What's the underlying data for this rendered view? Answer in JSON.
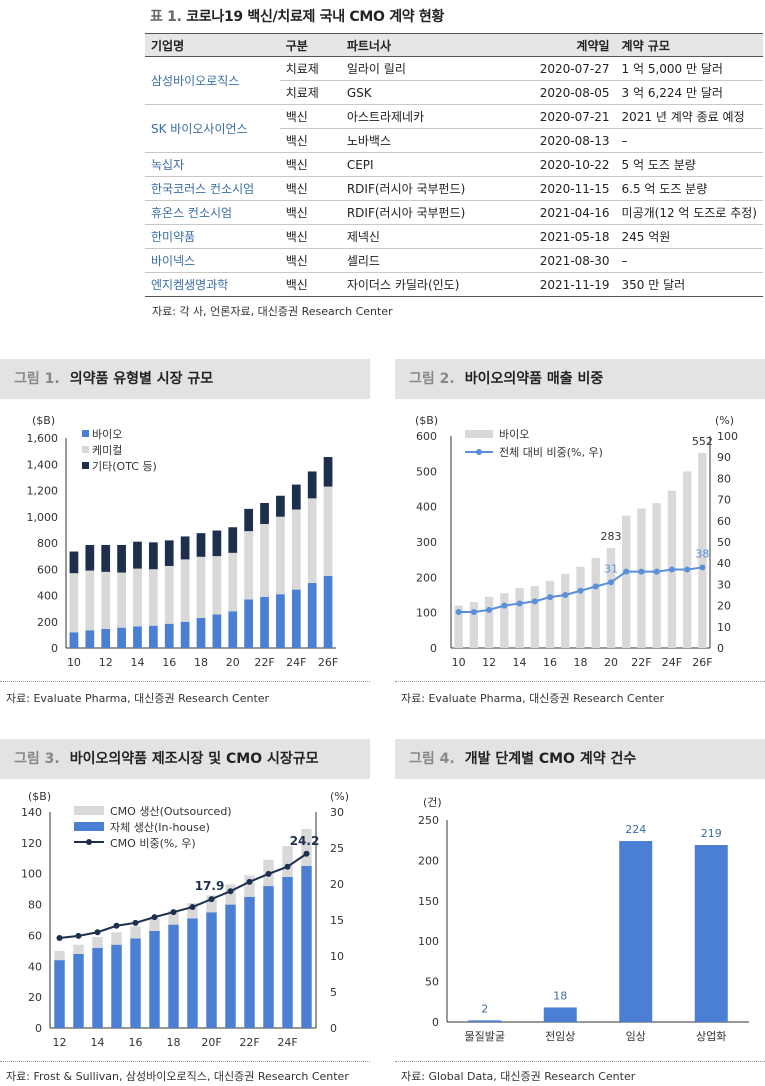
{
  "table": {
    "fig": "표 1.",
    "title": "코로나19 백신/치료제 국내 CMO 계약 현황",
    "headers": [
      "기업명",
      "구분",
      "파트너사",
      "계약일",
      "계약 규모"
    ],
    "rows": [
      {
        "company": "삼성바이오로직스",
        "type": "치료제",
        "partner": "일라이 릴리",
        "date": "2020-07-27",
        "size": "1 억 5,000 만 달러"
      },
      {
        "company": "",
        "type": "치료제",
        "partner": "GSK",
        "date": "2020-08-05",
        "size": "3 억 6,224 만 달러"
      },
      {
        "company": "SK 바이오사이언스",
        "type": "백신",
        "partner": "아스트라제네카",
        "date": "2020-07-21",
        "size": "2021 년 계약 종료 예정"
      },
      {
        "company": "",
        "type": "백신",
        "partner": "노바백스",
        "date": "2020-08-13",
        "size": "–"
      },
      {
        "company": "녹십자",
        "type": "백신",
        "partner": "CEPI",
        "date": "2020-10-22",
        "size": "5 억 도즈 분량"
      },
      {
        "company": "한국코러스 컨소시엄",
        "type": "백신",
        "partner": "RDIF(러시아 국부펀드)",
        "date": "2020-11-15",
        "size": "6.5 억 도즈 분량"
      },
      {
        "company": "휴온스 컨소시엄",
        "type": "백신",
        "partner": "RDIF(러시아 국부펀드)",
        "date": "2021-04-16",
        "size": "미공개(12 억 도즈로 추정)"
      },
      {
        "company": "한미약품",
        "type": "백신",
        "partner": "제넥신",
        "date": "2021-05-18",
        "size": "245 억원"
      },
      {
        "company": "바이넥스",
        "type": "백신",
        "partner": "셀리드",
        "date": "2021-08-30",
        "size": "–"
      },
      {
        "company": "엔지켐생명과학",
        "type": "백신",
        "partner": "자이더스 카딜라(인도)",
        "date": "2021-11-19",
        "size": "350 만 달러"
      }
    ],
    "source": "자료: 각 사, 언론자료, 대신증권 Research Center"
  },
  "fig1": {
    "fig": "그림 1.",
    "title": "의약품 유형별 시장 규모",
    "source": "자료: Evaluate Pharma, 대신증권 Research Center"
  },
  "fig2": {
    "fig": "그림 2.",
    "title": "바이오의약품 매출 비중",
    "source": "자료: Evaluate Pharma, 대신증권 Research Center"
  },
  "fig3": {
    "fig": "그림 3.",
    "title": "바이오의약품 제조시장 및 CMO 시장규모",
    "source": "자료: Frost & Sullivan, 삼성바이오로직스, 대신증권 Research Center"
  },
  "fig4": {
    "fig": "그림 4.",
    "title": "개발 단계별 CMO 계약 건수",
    "source": "자료: Global Data, 대신증권 Research Center"
  },
  "chart_data": [
    {
      "id": "fig1",
      "type": "bar",
      "stacked": true,
      "unit": "($B)",
      "categories": [
        "10",
        "11",
        "12",
        "13",
        "14",
        "15",
        "16",
        "17",
        "18",
        "19",
        "20",
        "21",
        "22F",
        "23F",
        "24F",
        "25F",
        "26F"
      ],
      "tick_labels": [
        "10",
        "12",
        "14",
        "16",
        "18",
        "20",
        "22F",
        "24F",
        "26F"
      ],
      "ylim": [
        0,
        1600
      ],
      "yticks": [
        0,
        200,
        400,
        600,
        800,
        "1,000",
        "1,200",
        "1,400",
        "1,600"
      ],
      "series": [
        {
          "name": "바이오",
          "color": "#4a7fd4",
          "values": [
            120,
            135,
            145,
            155,
            165,
            170,
            185,
            200,
            230,
            255,
            280,
            370,
            390,
            410,
            445,
            495,
            550
          ]
        },
        {
          "name": "케미컬",
          "color": "#d9d9d9",
          "values": [
            450,
            455,
            435,
            420,
            440,
            430,
            440,
            475,
            465,
            445,
            445,
            520,
            555,
            590,
            610,
            645,
            680
          ]
        },
        {
          "name": "기타(OTC 등)",
          "color": "#1e2f4d",
          "values": [
            165,
            195,
            205,
            210,
            205,
            205,
            195,
            175,
            180,
            195,
            195,
            170,
            160,
            160,
            190,
            205,
            225
          ]
        }
      ]
    },
    {
      "id": "fig2",
      "type": "bar",
      "unit_left": "($B)",
      "unit_right": "(%)",
      "categories": [
        "10",
        "11",
        "12",
        "13",
        "14",
        "15",
        "16",
        "17",
        "18",
        "19",
        "20",
        "21",
        "22F",
        "23F",
        "24F",
        "25F",
        "26F"
      ],
      "tick_labels": [
        "10",
        "12",
        "14",
        "16",
        "18",
        "20",
        "22F",
        "24F",
        "26F"
      ],
      "ylim_left": [
        0,
        600
      ],
      "ylim_right": [
        0,
        100
      ],
      "series": [
        {
          "name": "바이오",
          "type": "bar",
          "color": "#d9d9d9",
          "values": [
            120,
            130,
            145,
            155,
            170,
            175,
            190,
            210,
            230,
            255,
            283,
            375,
            395,
            410,
            445,
            500,
            552
          ]
        },
        {
          "name": "전체 대비 비중(%, 우)",
          "type": "line",
          "color": "#5b8fd8",
          "values": [
            17,
            17,
            18,
            20,
            21,
            22,
            24,
            25,
            27,
            29,
            31,
            36,
            36,
            36,
            37,
            37,
            38
          ]
        }
      ],
      "data_labels": [
        {
          "index": 10,
          "series": "바이오",
          "text": "283"
        },
        {
          "index": 16,
          "series": "바이오",
          "text": "552"
        },
        {
          "index": 10,
          "series": "전체 대비 비중(%, 우)",
          "text": "31"
        },
        {
          "index": 16,
          "series": "전체 대비 비중(%, 우)",
          "text": "38"
        }
      ]
    },
    {
      "id": "fig3",
      "type": "bar",
      "stacked": true,
      "unit_left": "($B)",
      "unit_right": "(%)",
      "categories": [
        "12",
        "13",
        "14",
        "15",
        "16",
        "17",
        "18",
        "19",
        "20F",
        "21F",
        "22F",
        "23F",
        "24F",
        "25F"
      ],
      "tick_labels": [
        "12",
        "14",
        "16",
        "18",
        "20F",
        "22F",
        "24F"
      ],
      "ylim_left": [
        0,
        140
      ],
      "ylim_right": [
        0,
        30
      ],
      "series": [
        {
          "name": "CMO 생산(Outsourced)",
          "type": "bar",
          "color": "#d9d9d9",
          "values": [
            6,
            6,
            7,
            8,
            8,
            8,
            9,
            10,
            11,
            13,
            14,
            17,
            20,
            24
          ]
        },
        {
          "name": "자체 생산(In-house)",
          "type": "bar",
          "color": "#4a7fd4",
          "values": [
            44,
            48,
            52,
            54,
            58,
            63,
            67,
            71,
            75,
            80,
            85,
            92,
            98,
            105
          ]
        },
        {
          "name": "CMO 비중(%, 우)",
          "type": "line",
          "color": "#1e2f4d",
          "values": [
            12.5,
            12.8,
            13.3,
            14.2,
            14.6,
            15.4,
            16.1,
            16.8,
            17.9,
            19.0,
            20.3,
            21.4,
            22.4,
            24.2
          ]
        }
      ],
      "data_labels": [
        {
          "index": 8,
          "series": "CMO 비중(%, 우)",
          "text": "17.9"
        },
        {
          "index": 13,
          "series": "CMO 비중(%, 우)",
          "text": "24.2"
        }
      ]
    },
    {
      "id": "fig4",
      "type": "bar",
      "unit": "(건)",
      "categories": [
        "물질발굴",
        "전임상",
        "임상",
        "상업화"
      ],
      "ylim": [
        0,
        250
      ],
      "yticks": [
        0,
        50,
        100,
        150,
        200,
        250
      ],
      "values": [
        2,
        18,
        224,
        219
      ],
      "color": "#4a7fd4"
    }
  ]
}
